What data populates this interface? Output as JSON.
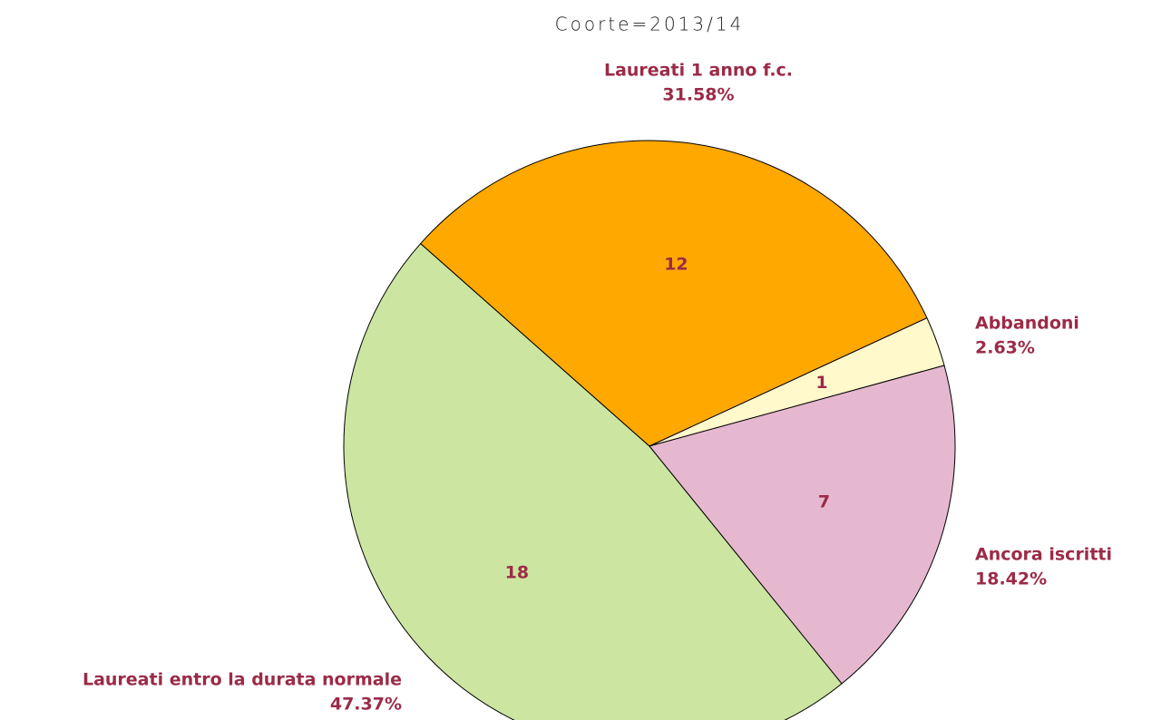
{
  "chart_data": {
    "type": "pie",
    "title": "Coorte=2013/14",
    "categories": [
      "Laureati entro la durata normale",
      "Laureati 1 anno f.c.",
      "Abbandoni",
      "Ancora iscritti"
    ],
    "values": [
      18,
      12,
      1,
      7
    ],
    "percent_labels": [
      "47.37%",
      "31.58%",
      "2.63%",
      "18.42%"
    ],
    "colors": [
      "#cce5a1",
      "#ffa800",
      "#fff9cc",
      "#e6b8cf"
    ]
  }
}
